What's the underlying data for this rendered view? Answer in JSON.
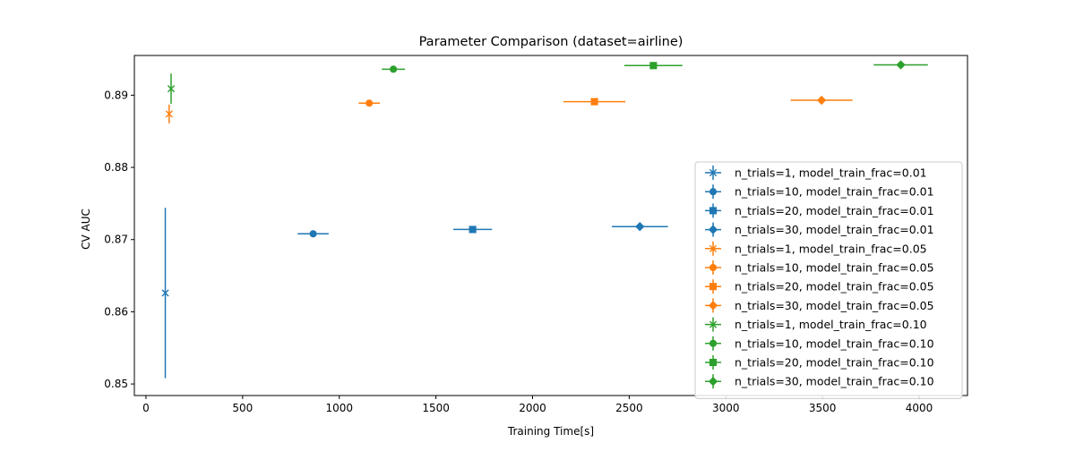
{
  "chart_data": {
    "type": "scatter",
    "title": "Parameter Comparison (dataset=airline)",
    "xlabel": "Training Time[s]",
    "ylabel": "CV AUC",
    "xlim": [
      -60,
      4250
    ],
    "ylim": [
      0.8484,
      0.8955
    ],
    "xticks": [
      0,
      500,
      1000,
      1500,
      2000,
      2500,
      3000,
      3500,
      4000
    ],
    "yticks": [
      0.85,
      0.86,
      0.87,
      0.88,
      0.89
    ],
    "legend_position": "lower right",
    "series": [
      {
        "name": "n_trials=1, model_train_frac=0.01",
        "color": "#1f77b4",
        "marker": "x",
        "x": 100,
        "y": 0.8626,
        "xerr": 0,
        "yerr": 0.0118
      },
      {
        "name": "n_trials=10, model_train_frac=0.01",
        "color": "#1f77b4",
        "marker": "o",
        "x": 865,
        "y": 0.8708,
        "xerr": 80,
        "yerr": 0.0004
      },
      {
        "name": "n_trials=20, model_train_frac=0.01",
        "color": "#1f77b4",
        "marker": "s",
        "x": 1690,
        "y": 0.8714,
        "xerr": 100,
        "yerr": 0.0003
      },
      {
        "name": "n_trials=30, model_train_frac=0.01",
        "color": "#1f77b4",
        "marker": "D",
        "x": 2555,
        "y": 0.8718,
        "xerr": 145,
        "yerr": 0.0002
      },
      {
        "name": "n_trials=1, model_train_frac=0.05",
        "color": "#ff7f0e",
        "marker": "x",
        "x": 120,
        "y": 0.8874,
        "xerr": 0,
        "yerr": 0.0013
      },
      {
        "name": "n_trials=10, model_train_frac=0.05",
        "color": "#ff7f0e",
        "marker": "o",
        "x": 1155,
        "y": 0.8889,
        "xerr": 55,
        "yerr": 0.0001
      },
      {
        "name": "n_trials=20, model_train_frac=0.05",
        "color": "#ff7f0e",
        "marker": "s",
        "x": 2320,
        "y": 0.8891,
        "xerr": 160,
        "yerr": 0.0001
      },
      {
        "name": "n_trials=30, model_train_frac=0.05",
        "color": "#ff7f0e",
        "marker": "D",
        "x": 3495,
        "y": 0.8893,
        "xerr": 160,
        "yerr": 0.0001
      },
      {
        "name": "n_trials=1, model_train_frac=0.10",
        "color": "#2ca02c",
        "marker": "x",
        "x": 130,
        "y": 0.8909,
        "xerr": 0,
        "yerr": 0.0021
      },
      {
        "name": "n_trials=10, model_train_frac=0.10",
        "color": "#2ca02c",
        "marker": "o",
        "x": 1280,
        "y": 0.8936,
        "xerr": 60,
        "yerr": 0.0001
      },
      {
        "name": "n_trials=20, model_train_frac=0.10",
        "color": "#2ca02c",
        "marker": "s",
        "x": 2625,
        "y": 0.8941,
        "xerr": 150,
        "yerr": 0.0001
      },
      {
        "name": "n_trials=30, model_train_frac=0.10",
        "color": "#2ca02c",
        "marker": "D",
        "x": 3905,
        "y": 0.8942,
        "xerr": 140,
        "yerr": 0.0001
      }
    ]
  }
}
